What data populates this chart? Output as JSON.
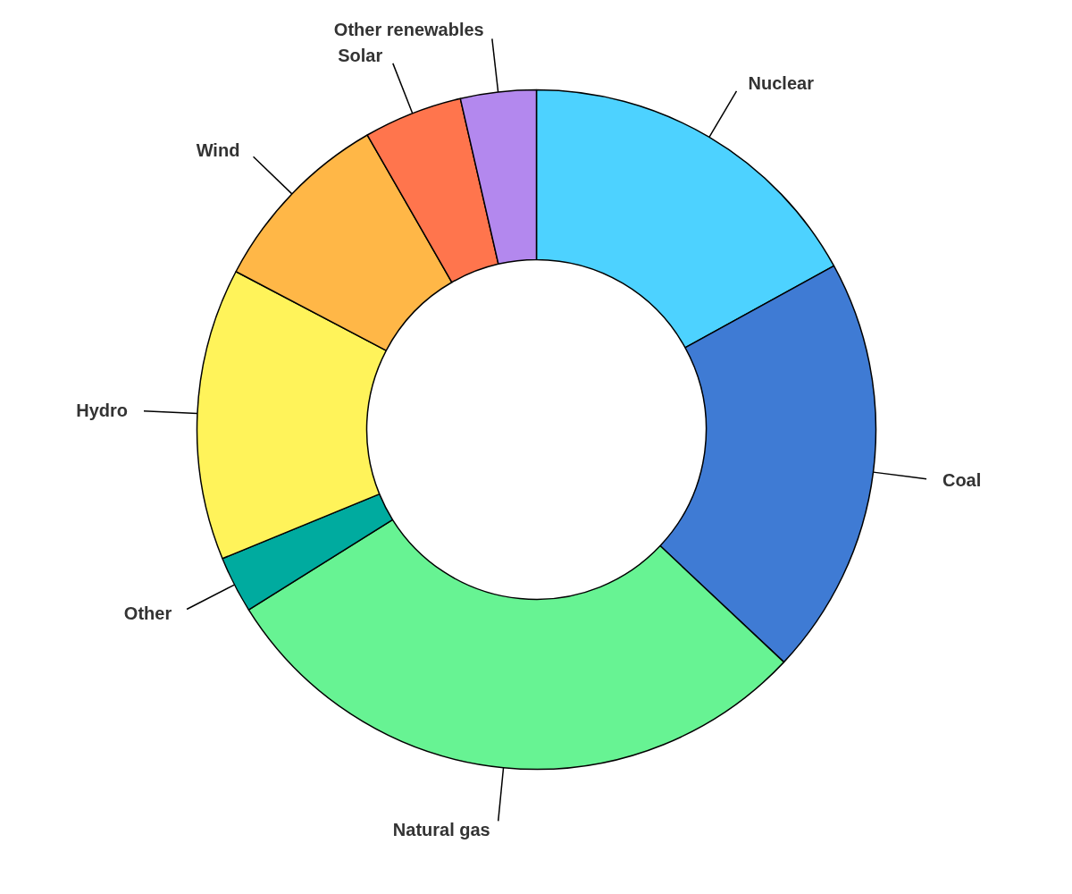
{
  "chart_data": {
    "type": "donut",
    "categories": [
      "Nuclear",
      "Coal",
      "Natural gas",
      "Other",
      "Hydro",
      "Wind",
      "Solar",
      "Other renewables"
    ],
    "values": [
      17,
      20,
      29.1,
      2.7,
      13.9,
      9,
      4.7,
      3.6
    ],
    "colors": [
      "#4dd2ff",
      "#3f7bd4",
      "#67f393",
      "#00ab9f",
      "#fff35a",
      "#ffb747",
      "#ff754d",
      "#b388ee"
    ]
  }
}
